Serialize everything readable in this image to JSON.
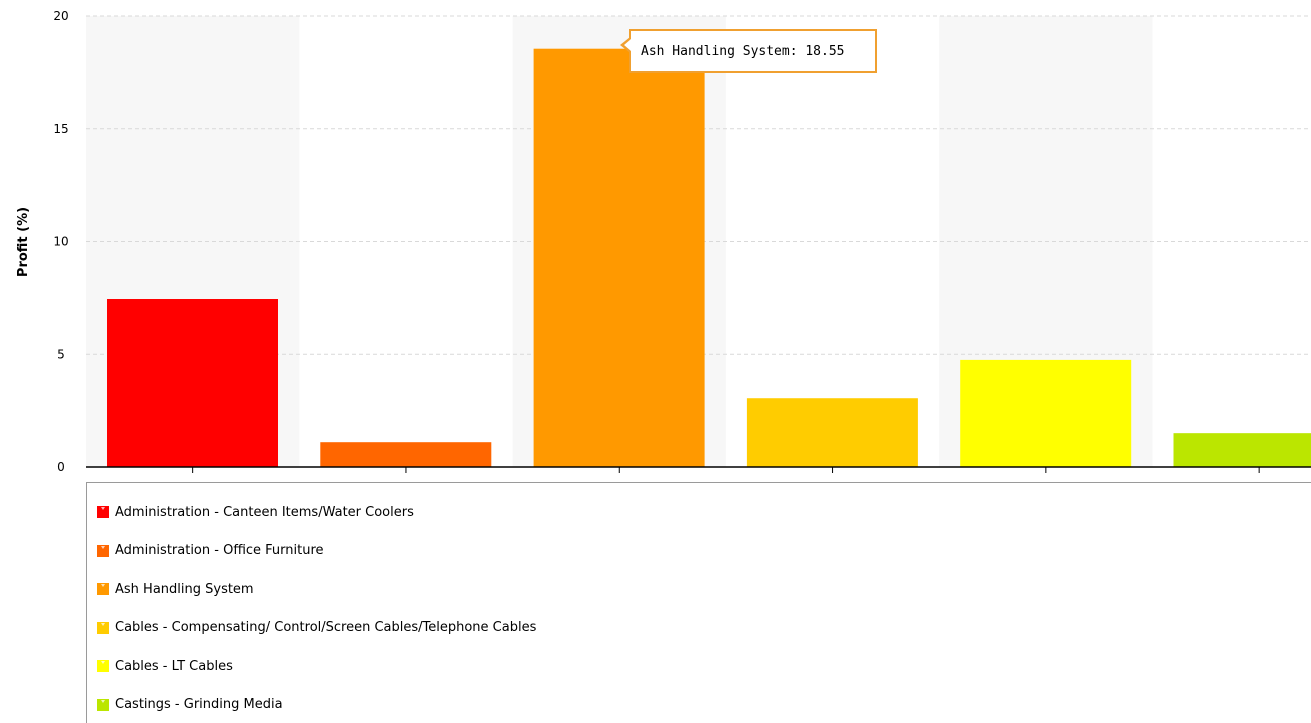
{
  "chart_data": {
    "type": "bar",
    "ylabel": "Profit (%)",
    "xlabel": "",
    "ylim": [
      0,
      20
    ],
    "yticks": [
      "0",
      "5",
      "10",
      "15",
      "20"
    ],
    "grid": true,
    "legend_placement": "bottom",
    "categories": [
      "Administration - Canteen Items/Water Coolers",
      "Administration - Office Furniture",
      "Ash Handling System",
      "Cables - Compensating/ Control/Screen Cables/Telephone Cables",
      "Cables - LT Cables",
      "Castings - Grinding Media"
    ],
    "values": [
      7.45,
      1.1,
      18.55,
      3.05,
      4.75,
      1.5
    ],
    "colors": [
      "#ff0000",
      "#ff6600",
      "#ff9900",
      "#ffcc00",
      "#ffff00",
      "#bbe600"
    ]
  },
  "tooltip": {
    "text": "Ash Handling System: 18.55",
    "border_color": "#f0a030"
  }
}
